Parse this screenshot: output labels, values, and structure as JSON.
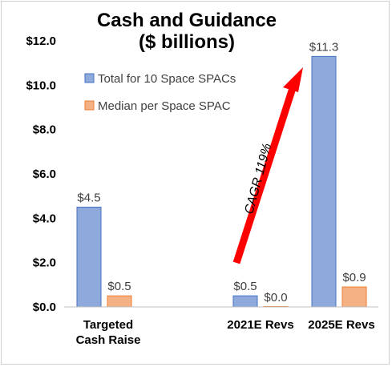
{
  "chart_data": {
    "type": "bar",
    "title": [
      "Cash and Guidance",
      "($ billions)"
    ],
    "categories": [
      [
        "Targeted",
        "Cash Raise"
      ],
      [
        "2021E Revs"
      ],
      [
        "2025E Revs"
      ]
    ],
    "series": [
      {
        "name": "Total for 10 Space SPACs",
        "color": "#8EA9DB",
        "edge": "#4472C4",
        "values": [
          4.5,
          0.5,
          11.3
        ],
        "labels": [
          "$4.5",
          "$0.5",
          "$11.3"
        ]
      },
      {
        "name": "Median per Space SPAC",
        "color": "#F4B183",
        "edge": "#ED7D31",
        "values": [
          0.5,
          0.0,
          0.9
        ],
        "labels": [
          "$0.5",
          "$0.0",
          "$0.9"
        ]
      }
    ],
    "ylim": [
      0,
      12
    ],
    "yticks": [
      0,
      2,
      4,
      6,
      8,
      10,
      12
    ],
    "ytick_labels": [
      "$0.0",
      "$2.0",
      "$4.0",
      "$6.0",
      "$8.0",
      "$10.0",
      "$12.0"
    ],
    "legend_position": "top-left",
    "grid": false,
    "annotation": {
      "text": "CAGR 119%",
      "color": "#FF0000"
    }
  }
}
